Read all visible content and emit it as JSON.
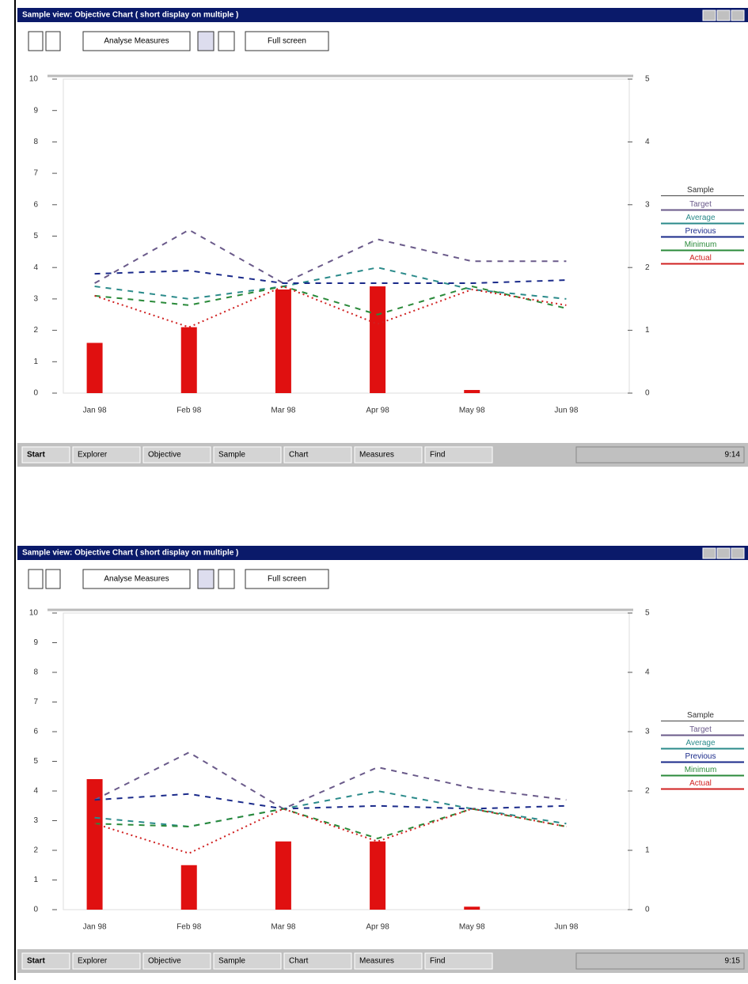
{
  "windows": [
    {
      "title": "Sample view: Objective Chart ( short display on multiple )",
      "toolbar": [
        "Analyse Measures",
        "Full screen"
      ],
      "chart": {
        "type": "bar-line",
        "categories": [
          "Jan 98",
          "Feb 98",
          "Mar 98",
          "Apr 98",
          "May 98",
          "Jun 98"
        ],
        "ylim": [
          0,
          10
        ],
        "yticks": [
          0,
          1,
          2,
          3,
          4,
          5,
          6,
          7,
          8,
          9,
          10
        ],
        "y2lim": [
          0,
          5
        ],
        "y2ticks": [
          0,
          1,
          2,
          3,
          4,
          5
        ],
        "bars": {
          "color": "#e01010",
          "values": [
            1.6,
            2.1,
            3.3,
            3.4,
            0.1,
            null
          ]
        },
        "legend_title": "Sample",
        "series": [
          {
            "name": "Target",
            "color": "#6a5a8a",
            "values": [
              3.5,
              5.2,
              3.5,
              4.9,
              4.2,
              4.2
            ]
          },
          {
            "name": "Average",
            "color": "#2a8a8a",
            "values": [
              3.4,
              3.0,
              3.4,
              4.0,
              3.3,
              3.0
            ]
          },
          {
            "name": "Previous",
            "color": "#1a2a8a",
            "values": [
              3.8,
              3.9,
              3.5,
              3.5,
              3.5,
              3.6
            ]
          },
          {
            "name": "Minimum",
            "color": "#2a8a3a",
            "values": [
              3.1,
              2.8,
              3.4,
              2.5,
              3.4,
              2.7
            ]
          },
          {
            "name": "Actual",
            "color": "#d02020",
            "values": [
              3.1,
              2.1,
              3.4,
              2.2,
              3.3,
              2.8
            ]
          }
        ]
      },
      "taskbar": [
        "Start",
        "Explorer",
        "Objective",
        "Sample",
        "Chart",
        "Measures",
        "Find"
      ],
      "clock": "9:14"
    },
    {
      "title": "Sample view: Objective Chart ( short display on multiple )",
      "toolbar": [
        "Analyse Measures",
        "Full screen"
      ],
      "chart": {
        "type": "bar-line",
        "categories": [
          "Jan 98",
          "Feb 98",
          "Mar 98",
          "Apr 98",
          "May 98",
          "Jun 98"
        ],
        "ylim": [
          0,
          10
        ],
        "yticks": [
          0,
          1,
          2,
          3,
          4,
          5,
          6,
          7,
          8,
          9,
          10
        ],
        "y2lim": [
          0,
          5
        ],
        "y2ticks": [
          0,
          1,
          2,
          3,
          4,
          5
        ],
        "bars": {
          "color": "#e01010",
          "values": [
            4.4,
            1.5,
            2.3,
            2.3,
            0.1,
            null
          ]
        },
        "legend_title": "Sample",
        "series": [
          {
            "name": "Target",
            "color": "#6a5a8a",
            "values": [
              3.7,
              5.3,
              3.4,
              4.8,
              4.1,
              3.7
            ]
          },
          {
            "name": "Average",
            "color": "#2a8a8a",
            "values": [
              3.1,
              2.8,
              3.4,
              4.0,
              3.4,
              2.9
            ]
          },
          {
            "name": "Previous",
            "color": "#1a2a8a",
            "values": [
              3.7,
              3.9,
              3.4,
              3.5,
              3.4,
              3.5
            ]
          },
          {
            "name": "Minimum",
            "color": "#2a8a3a",
            "values": [
              2.9,
              2.8,
              3.4,
              2.4,
              3.4,
              2.8
            ]
          },
          {
            "name": "Actual",
            "color": "#d02020",
            "values": [
              2.9,
              1.9,
              3.4,
              2.3,
              3.4,
              2.8
            ]
          }
        ]
      },
      "taskbar": [
        "Start",
        "Explorer",
        "Objective",
        "Sample",
        "Chart",
        "Measures",
        "Find"
      ],
      "clock": "9:15"
    }
  ]
}
